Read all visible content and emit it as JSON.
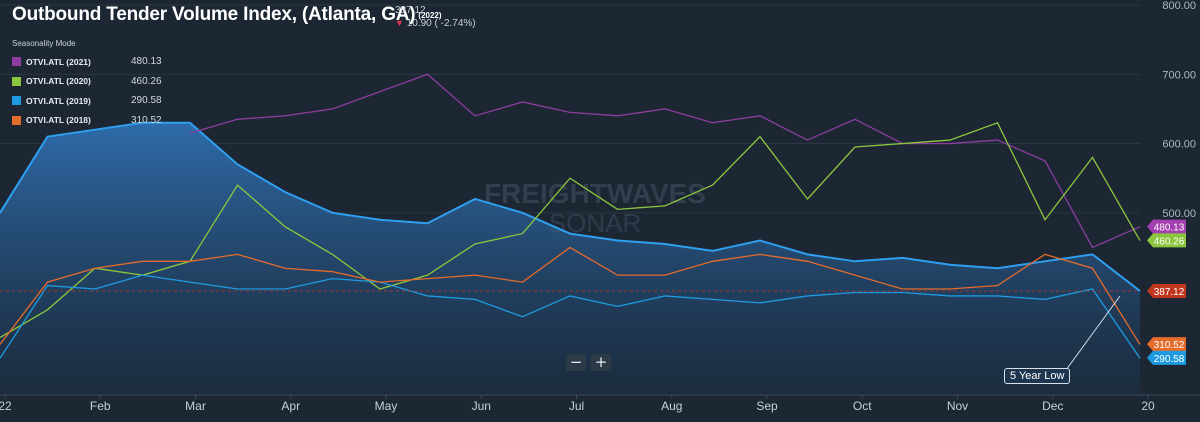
{
  "header": {
    "title": "Outbound Tender Volume Index, (Atlanta, GA)",
    "year_tag": "(2022)",
    "price": "387.12",
    "change": "10.90 ( -2.74%)",
    "seasonality_label": "Seasonality Mode"
  },
  "legend": [
    {
      "name": "OTVI.ATL (2021)",
      "value": "480.13",
      "color": "#8e3ca0"
    },
    {
      "name": "OTVI.ATL (2020)",
      "value": "460.26",
      "color": "#8cc63f"
    },
    {
      "name": "OTVI.ATL (2019)",
      "value": "290.58",
      "color": "#1e9be0"
    },
    {
      "name": "OTVI.ATL (2018)",
      "value": "310.52",
      "color": "#e36b2c"
    }
  ],
  "price_tags": [
    {
      "label": "480.13",
      "value": 480.13,
      "color": "#a33fb1"
    },
    {
      "label": "460.26",
      "value": 460.26,
      "color": "#8cc63f"
    },
    {
      "label": "387.12",
      "value": 387.12,
      "color": "#c0361f"
    },
    {
      "label": "310.52",
      "value": 310.52,
      "color": "#e36b2c"
    },
    {
      "label": "290.58",
      "value": 290.58,
      "color": "#1e9be0"
    }
  ],
  "watermark": {
    "line1": "FREIGHTWAVES",
    "line2": "SONAR"
  },
  "callout": {
    "text": "5 Year Low"
  },
  "zoom": {
    "minus": "−",
    "plus": "+"
  },
  "chart_data": {
    "type": "line",
    "y_ticks": [
      "800.00",
      "700.00",
      "600.00",
      "500.00"
    ],
    "ylim": [
      237,
      800
    ],
    "x_ticks": [
      "22",
      "Feb",
      "Mar",
      "Apr",
      "May",
      "Jun",
      "Jul",
      "Aug",
      "Sep",
      "Oct",
      "Nov",
      "Dec",
      "20"
    ],
    "x": [
      "Jan",
      "Jan",
      "Feb",
      "Feb",
      "Mar",
      "Mar",
      "Apr",
      "Apr",
      "May",
      "May",
      "Jun",
      "Jun",
      "Jul",
      "Jul",
      "Aug",
      "Aug",
      "Sep",
      "Sep",
      "Oct",
      "Oct",
      "Nov",
      "Nov",
      "Dec",
      "Dec",
      "Dec"
    ],
    "reference_line": 387.12,
    "series": [
      {
        "name": "OTVI.ATL (2021)",
        "color": "#8e3ca0",
        "values": [
          null,
          null,
          null,
          null,
          615,
          635,
          640,
          650,
          675,
          700,
          640,
          660,
          645,
          640,
          650,
          630,
          640,
          605,
          635,
          600,
          600,
          605,
          575,
          450,
          480
        ]
      },
      {
        "name": "OTVI.ATL (2020)",
        "color": "#8cc63f",
        "values": [
          320,
          360,
          420,
          410,
          430,
          540,
          480,
          440,
          390,
          410,
          455,
          470,
          550,
          505,
          510,
          540,
          610,
          520,
          595,
          600,
          605,
          630,
          490,
          580,
          460
        ]
      },
      {
        "name": "OTVI.ATL (2019)",
        "color": "#1e9be0",
        "values": [
          290,
          395,
          390,
          410,
          400,
          390,
          390,
          405,
          400,
          380,
          375,
          350,
          380,
          365,
          380,
          375,
          370,
          380,
          385,
          385,
          380,
          380,
          375,
          390,
          290
        ]
      },
      {
        "name": "OTVI.ATL (2018)",
        "color": "#e36b2c",
        "values": [
          310,
          400,
          420,
          430,
          430,
          440,
          420,
          415,
          400,
          405,
          410,
          400,
          450,
          410,
          410,
          430,
          440,
          430,
          410,
          390,
          390,
          395,
          440,
          420,
          310
        ]
      },
      {
        "name": "",
        "color": "#2f9ff0",
        "area": true,
        "values": [
          500,
          610,
          620,
          630,
          630,
          570,
          530,
          500,
          490,
          485,
          520,
          500,
          470,
          460,
          455,
          445,
          460,
          440,
          430,
          435,
          425,
          420,
          430,
          440,
          387
        ]
      }
    ]
  }
}
